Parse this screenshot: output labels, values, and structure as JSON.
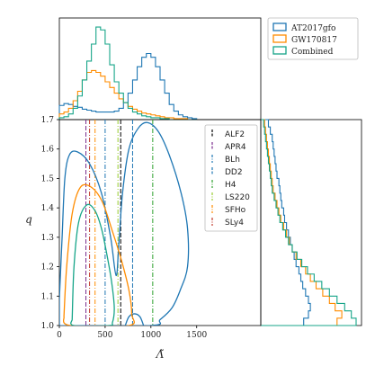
{
  "chart_data": {
    "type": "corner",
    "title": "",
    "xlabel": "Λ̃",
    "ylabel": "q",
    "xlim": [
      0,
      2200
    ],
    "ylim": [
      1.0,
      1.7
    ],
    "xticks": [
      0,
      500,
      1000,
      1500
    ],
    "yticks": [
      1.0,
      1.1,
      1.2,
      1.3,
      1.4,
      1.5,
      1.6,
      1.7
    ],
    "xtick_labels": [
      "0",
      "500",
      "1000",
      "1500"
    ],
    "ytick_labels": [
      "1.0",
      "1.1",
      "1.2",
      "1.3",
      "1.4",
      "1.5",
      "1.6",
      "1.7"
    ],
    "posteriors_legend": "top-right",
    "eos_legend": "inside-right",
    "series": [
      {
        "name": "AT2017gfo",
        "color": "#1f77b4"
      },
      {
        "name": "GW170817",
        "color": "#ff8c00"
      },
      {
        "name": "Combined",
        "color": "#17a589"
      }
    ],
    "eos": [
      {
        "name": "ALF2",
        "lambda": 670,
        "color": "#000000",
        "dash": "dash"
      },
      {
        "name": "APR4",
        "lambda": 290,
        "color": "#7b2d8e",
        "dash": "dash"
      },
      {
        "name": "BLh",
        "lambda": 500,
        "color": "#1f77b4",
        "dash": "dashdot"
      },
      {
        "name": "DD2",
        "lambda": 800,
        "color": "#1f77b4",
        "dash": "dash"
      },
      {
        "name": "H4",
        "lambda": 1020,
        "color": "#2ca02c",
        "dash": "dashdot"
      },
      {
        "name": "LS220",
        "lambda": 640,
        "color": "#9acd32",
        "dash": "dashdot"
      },
      {
        "name": "SFHo",
        "lambda": 390,
        "color": "#ff8c00",
        "dash": "dashdot"
      },
      {
        "name": "SLy4",
        "lambda": 330,
        "color": "#c0392b",
        "dash": "dashdot"
      }
    ],
    "lambda_hist": {
      "bin_edges": [
        0,
        50,
        100,
        150,
        200,
        250,
        300,
        350,
        400,
        450,
        500,
        550,
        600,
        650,
        700,
        750,
        800,
        850,
        900,
        950,
        1000,
        1050,
        1100,
        1150,
        1200,
        1250,
        1300,
        1350,
        1400,
        1450,
        1500
      ],
      "AT2017gfo": [
        0.15,
        0.17,
        0.16,
        0.14,
        0.13,
        0.11,
        0.1,
        0.09,
        0.08,
        0.08,
        0.08,
        0.08,
        0.09,
        0.12,
        0.18,
        0.28,
        0.42,
        0.56,
        0.66,
        0.7,
        0.66,
        0.56,
        0.42,
        0.28,
        0.16,
        0.09,
        0.05,
        0.03,
        0.02,
        0.01
      ],
      "GW170817": [
        0.06,
        0.08,
        0.12,
        0.2,
        0.3,
        0.42,
        0.5,
        0.52,
        0.5,
        0.46,
        0.4,
        0.34,
        0.28,
        0.22,
        0.18,
        0.14,
        0.11,
        0.09,
        0.07,
        0.06,
        0.05,
        0.04,
        0.03,
        0.02,
        0.02,
        0.01,
        0.01,
        0.01,
        0.0,
        0.0
      ],
      "Combined": [
        0.02,
        0.03,
        0.06,
        0.12,
        0.25,
        0.42,
        0.62,
        0.8,
        0.98,
        0.95,
        0.8,
        0.58,
        0.4,
        0.28,
        0.18,
        0.12,
        0.08,
        0.06,
        0.04,
        0.03,
        0.02,
        0.02,
        0.01,
        0.01,
        0.0,
        0.0,
        0.0,
        0.0,
        0.0,
        0.0
      ]
    },
    "q_hist": {
      "bin_edges": [
        1.0,
        1.025,
        1.05,
        1.075,
        1.1,
        1.125,
        1.15,
        1.175,
        1.2,
        1.225,
        1.25,
        1.275,
        1.3,
        1.325,
        1.35,
        1.375,
        1.4,
        1.425,
        1.45,
        1.475,
        1.5,
        1.525,
        1.55,
        1.575,
        1.6,
        1.625,
        1.65,
        1.675,
        1.7
      ],
      "AT2017gfo": [
        0.45,
        0.5,
        0.52,
        0.5,
        0.47,
        0.44,
        0.42,
        0.4,
        0.37,
        0.35,
        0.33,
        0.31,
        0.29,
        0.27,
        0.25,
        0.24,
        0.22,
        0.21,
        0.2,
        0.19,
        0.17,
        0.16,
        0.15,
        0.14,
        0.13,
        0.12,
        0.1,
        0.08
      ],
      "GW170817": [
        0.8,
        0.85,
        0.78,
        0.72,
        0.65,
        0.58,
        0.52,
        0.47,
        0.42,
        0.37,
        0.33,
        0.3,
        0.27,
        0.24,
        0.21,
        0.19,
        0.17,
        0.15,
        0.13,
        0.12,
        0.11,
        0.1,
        0.09,
        0.08,
        0.07,
        0.06,
        0.05,
        0.04
      ],
      "Combined": [
        1.0,
        0.95,
        0.88,
        0.8,
        0.72,
        0.64,
        0.56,
        0.49,
        0.43,
        0.38,
        0.33,
        0.29,
        0.26,
        0.23,
        0.2,
        0.18,
        0.16,
        0.14,
        0.12,
        0.11,
        0.1,
        0.09,
        0.08,
        0.07,
        0.06,
        0.05,
        0.04,
        0.03
      ]
    },
    "contours": {
      "AT2017gfo": {
        "outer": [
          [
            0,
            1.09
          ],
          [
            30,
            1.3
          ],
          [
            60,
            1.5
          ],
          [
            110,
            1.58
          ],
          [
            200,
            1.59
          ],
          [
            330,
            1.55
          ],
          [
            460,
            1.45
          ],
          [
            560,
            1.3
          ],
          [
            620,
            1.17
          ],
          [
            650,
            1.28
          ],
          [
            690,
            1.45
          ],
          [
            760,
            1.6
          ],
          [
            860,
            1.67
          ],
          [
            960,
            1.69
          ],
          [
            1080,
            1.66
          ],
          [
            1200,
            1.58
          ],
          [
            1330,
            1.45
          ],
          [
            1400,
            1.33
          ],
          [
            1400,
            1.2
          ],
          [
            1320,
            1.12
          ],
          [
            1230,
            1.06
          ],
          [
            1100,
            1.02
          ],
          [
            1000,
            1.0
          ],
          [
            0,
            1.0
          ]
        ],
        "inner": [
          [
            720,
            1.0
          ],
          [
            760,
            1.03
          ],
          [
            820,
            1.04
          ],
          [
            880,
            1.03
          ],
          [
            920,
            1.0
          ]
        ]
      },
      "GW170817": {
        "outer": [
          [
            50,
            1.03
          ],
          [
            80,
            1.2
          ],
          [
            140,
            1.38
          ],
          [
            230,
            1.47
          ],
          [
            350,
            1.47
          ],
          [
            470,
            1.42
          ],
          [
            580,
            1.32
          ],
          [
            680,
            1.22
          ],
          [
            760,
            1.12
          ],
          [
            790,
            1.04
          ],
          [
            760,
            1.0
          ],
          [
            120,
            1.0
          ],
          [
            50,
            1.03
          ]
        ]
      },
      "Combined": {
        "outer": [
          [
            140,
            1.02
          ],
          [
            160,
            1.2
          ],
          [
            210,
            1.35
          ],
          [
            300,
            1.41
          ],
          [
            390,
            1.39
          ],
          [
            460,
            1.33
          ],
          [
            520,
            1.24
          ],
          [
            570,
            1.15
          ],
          [
            600,
            1.06
          ],
          [
            580,
            1.01
          ],
          [
            540,
            1.0
          ],
          [
            160,
            1.0
          ],
          [
            140,
            1.02
          ]
        ]
      }
    }
  }
}
